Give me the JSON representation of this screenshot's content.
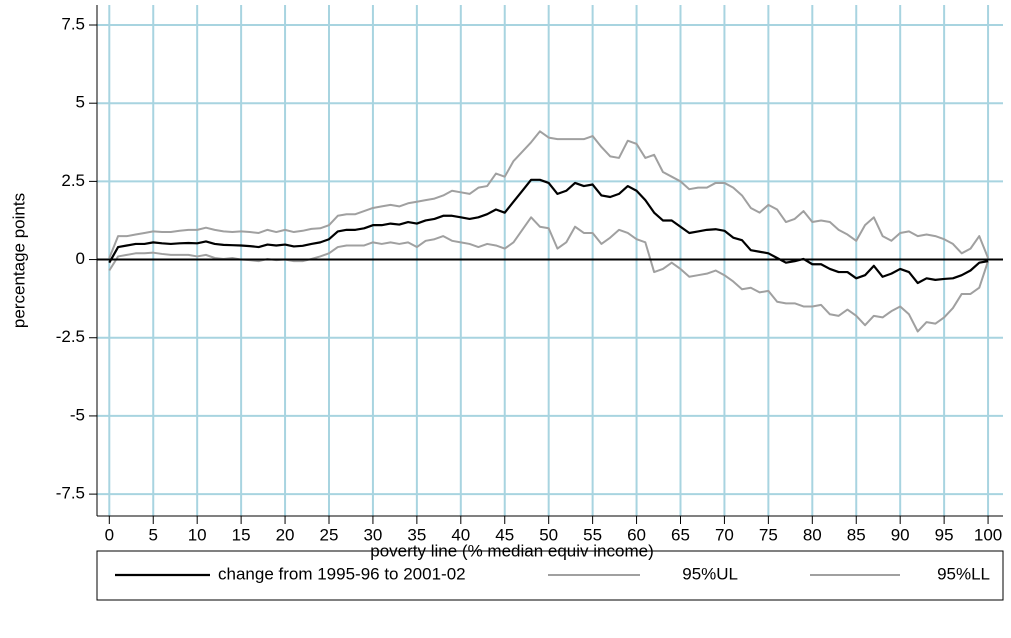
{
  "chart_data": {
    "type": "line",
    "x_label": "poverty line (% median equiv income)",
    "y_label": "percentage points",
    "x": [
      0,
      1,
      2,
      3,
      4,
      5,
      6,
      7,
      8,
      9,
      10,
      11,
      12,
      13,
      14,
      15,
      16,
      17,
      18,
      19,
      20,
      21,
      22,
      23,
      24,
      25,
      26,
      27,
      28,
      29,
      30,
      31,
      32,
      33,
      34,
      35,
      36,
      37,
      38,
      39,
      40,
      41,
      42,
      43,
      44,
      45,
      46,
      47,
      48,
      49,
      50,
      51,
      52,
      53,
      54,
      55,
      56,
      57,
      58,
      59,
      60,
      61,
      62,
      63,
      64,
      65,
      66,
      67,
      68,
      69,
      70,
      71,
      72,
      73,
      74,
      75,
      76,
      77,
      78,
      79,
      80,
      81,
      82,
      83,
      84,
      85,
      86,
      87,
      88,
      89,
      90,
      91,
      92,
      93,
      94,
      95,
      96,
      97,
      98,
      99,
      100
    ],
    "series": [
      {
        "name": "change from 1995-96 to 2001-02",
        "color": "#000000",
        "width": 2.2,
        "values": [
          -0.1,
          0.4,
          0.45,
          0.5,
          0.5,
          0.55,
          0.52,
          0.5,
          0.52,
          0.53,
          0.52,
          0.58,
          0.5,
          0.47,
          0.46,
          0.45,
          0.43,
          0.4,
          0.48,
          0.45,
          0.48,
          0.42,
          0.44,
          0.5,
          0.55,
          0.65,
          0.9,
          0.95,
          0.95,
          1.0,
          1.1,
          1.1,
          1.15,
          1.12,
          1.2,
          1.15,
          1.25,
          1.3,
          1.4,
          1.4,
          1.35,
          1.3,
          1.35,
          1.45,
          1.6,
          1.5,
          1.85,
          2.2,
          2.55,
          2.55,
          2.45,
          2.1,
          2.2,
          2.45,
          2.35,
          2.4,
          2.05,
          2.0,
          2.1,
          2.35,
          2.2,
          1.9,
          1.5,
          1.25,
          1.25,
          1.05,
          0.85,
          0.9,
          0.95,
          0.97,
          0.92,
          0.7,
          0.62,
          0.3,
          0.25,
          0.2,
          0.05,
          -0.1,
          -0.05,
          0.02,
          -0.15,
          -0.15,
          -0.3,
          -0.4,
          -0.4,
          -0.6,
          -0.5,
          -0.2,
          -0.55,
          -0.45,
          -0.3,
          -0.4,
          -0.75,
          -0.6,
          -0.65,
          -0.62,
          -0.6,
          -0.5,
          -0.35,
          -0.1,
          -0.05
        ]
      },
      {
        "name": "95%UL",
        "color": "#a0a0a0",
        "width": 2,
        "values": [
          0.05,
          0.75,
          0.75,
          0.8,
          0.85,
          0.9,
          0.88,
          0.88,
          0.92,
          0.95,
          0.95,
          1.02,
          0.95,
          0.9,
          0.88,
          0.9,
          0.88,
          0.85,
          0.95,
          0.88,
          0.95,
          0.88,
          0.92,
          0.98,
          1.0,
          1.1,
          1.4,
          1.45,
          1.45,
          1.55,
          1.65,
          1.7,
          1.75,
          1.7,
          1.8,
          1.85,
          1.9,
          1.95,
          2.05,
          2.2,
          2.15,
          2.1,
          2.3,
          2.35,
          2.75,
          2.65,
          3.15,
          3.45,
          3.75,
          4.1,
          3.9,
          3.85,
          3.85,
          3.85,
          3.85,
          3.95,
          3.6,
          3.3,
          3.25,
          3.8,
          3.7,
          3.25,
          3.35,
          2.8,
          2.65,
          2.5,
          2.25,
          2.3,
          2.3,
          2.45,
          2.45,
          2.3,
          2.05,
          1.65,
          1.5,
          1.75,
          1.6,
          1.2,
          1.3,
          1.55,
          1.2,
          1.25,
          1.2,
          0.95,
          0.8,
          0.6,
          1.1,
          1.35,
          0.75,
          0.6,
          0.85,
          0.9,
          0.75,
          0.8,
          0.75,
          0.65,
          0.5,
          0.2,
          0.35,
          0.75,
          0.05
        ]
      },
      {
        "name": "95%LL",
        "color": "#a0a0a0",
        "width": 2,
        "values": [
          -0.35,
          0.1,
          0.15,
          0.2,
          0.2,
          0.22,
          0.18,
          0.15,
          0.15,
          0.15,
          0.1,
          0.15,
          0.05,
          0.02,
          0.05,
          0.0,
          -0.02,
          -0.05,
          0.02,
          -0.02,
          0.0,
          -0.05,
          -0.05,
          0.02,
          0.1,
          0.2,
          0.4,
          0.45,
          0.45,
          0.45,
          0.55,
          0.5,
          0.55,
          0.5,
          0.55,
          0.4,
          0.6,
          0.65,
          0.75,
          0.6,
          0.55,
          0.5,
          0.4,
          0.5,
          0.45,
          0.35,
          0.55,
          0.95,
          1.35,
          1.05,
          1.0,
          0.35,
          0.55,
          1.05,
          0.85,
          0.85,
          0.5,
          0.7,
          0.95,
          0.85,
          0.65,
          0.55,
          -0.4,
          -0.3,
          -0.1,
          -0.3,
          -0.55,
          -0.5,
          -0.45,
          -0.35,
          -0.5,
          -0.7,
          -0.95,
          -0.9,
          -1.05,
          -1.0,
          -1.35,
          -1.4,
          -1.4,
          -1.5,
          -1.5,
          -1.45,
          -1.75,
          -1.8,
          -1.6,
          -1.8,
          -2.1,
          -1.8,
          -1.85,
          -1.65,
          -1.5,
          -1.75,
          -2.3,
          -2.0,
          -2.05,
          -1.85,
          -1.55,
          -1.1,
          -1.1,
          -0.9,
          -0.05
        ]
      }
    ],
    "xlim": [
      -1.4,
      101.7
    ],
    "ylim": [
      -8.2,
      8.14
    ],
    "xticks": [
      0,
      5,
      10,
      15,
      20,
      25,
      30,
      35,
      40,
      45,
      50,
      55,
      60,
      65,
      70,
      75,
      80,
      85,
      90,
      95,
      100
    ],
    "yticks": [
      -7.5,
      -5,
      -2.5,
      0,
      2.5,
      5,
      7.5
    ],
    "grid": true,
    "grid_color": "#a8d4e0",
    "reference_line": 0,
    "legend": "bottom"
  }
}
